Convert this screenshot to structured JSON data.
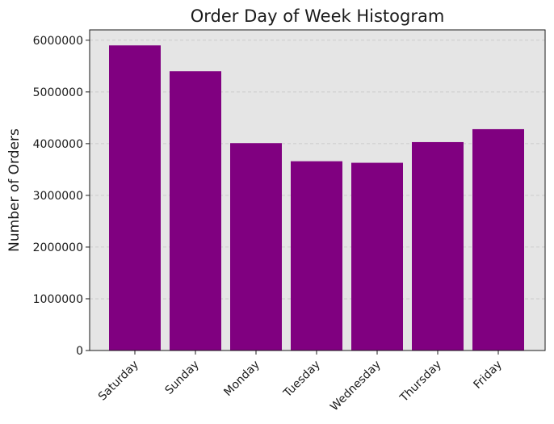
{
  "chart_data": {
    "type": "bar",
    "title": "Order Day of Week Histogram",
    "xlabel": "",
    "ylabel": "Number of Orders",
    "categories": [
      "Saturday",
      "Sunday",
      "Monday",
      "Tuesday",
      "Wednesday",
      "Thursday",
      "Friday"
    ],
    "values": [
      5900000,
      5400000,
      4010000,
      3660000,
      3630000,
      4030000,
      4280000
    ],
    "ylim": [
      0,
      6200000
    ],
    "yticks": [
      0,
      1000000,
      2000000,
      3000000,
      4000000,
      5000000,
      6000000
    ],
    "ytick_labels": [
      "0",
      "1000000",
      "2000000",
      "3000000",
      "4000000",
      "5000000",
      "6000000"
    ],
    "grid": true,
    "colors": {
      "bar": "#800080",
      "plot_background": "#e5e5e5",
      "grid": "#cccccc"
    }
  }
}
